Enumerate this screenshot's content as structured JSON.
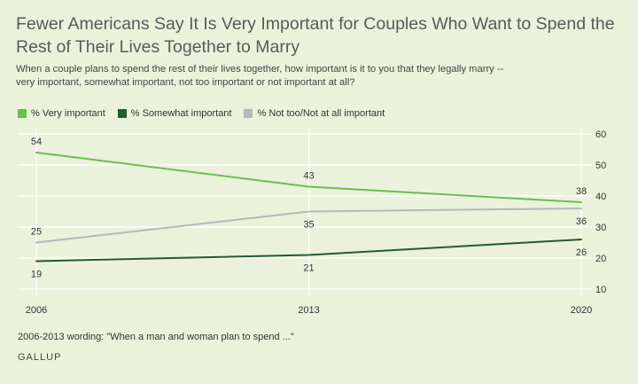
{
  "header": {
    "title": "Fewer Americans Say It Is Very Important for Couples Who Want to Spend the Rest of Their Lives Together to Marry",
    "subtitle": "When a couple plans to spend the rest of their lives together, how important is it to you that they legally marry -- very important, somewhat important, not too important or not important at all?"
  },
  "footer": {
    "note": "2006-2013 wording: \"When a man and woman plan to spend ...\"",
    "brand": "GALLUP"
  },
  "chart_data": {
    "type": "line",
    "title": "Fewer Americans Say It Is Very Important for Couples Who Want to Spend the Rest of Their Lives Together to Marry",
    "x": [
      2006,
      2013,
      2020
    ],
    "x_tick_labels": [
      "2006",
      "2013",
      "2020"
    ],
    "ylim": [
      10,
      60
    ],
    "y_ticks": [
      10,
      20,
      30,
      40,
      50,
      60
    ],
    "y_axis_side": "right",
    "grid": true,
    "legend_placement": "top-left",
    "series": [
      {
        "name": "% Very important",
        "values": [
          54,
          43,
          38
        ],
        "color": "#6abf4b",
        "label_pos": [
          "above",
          "above",
          "above"
        ]
      },
      {
        "name": "% Somewhat important",
        "values": [
          19,
          21,
          26
        ],
        "color": "#245c2b",
        "label_pos": [
          "below",
          "below",
          "below"
        ]
      },
      {
        "name": "% Not too/Not at all important",
        "values": [
          25,
          35,
          36
        ],
        "color": "#b8b8b8",
        "label_pos": [
          "above",
          "below",
          "below"
        ]
      }
    ]
  }
}
